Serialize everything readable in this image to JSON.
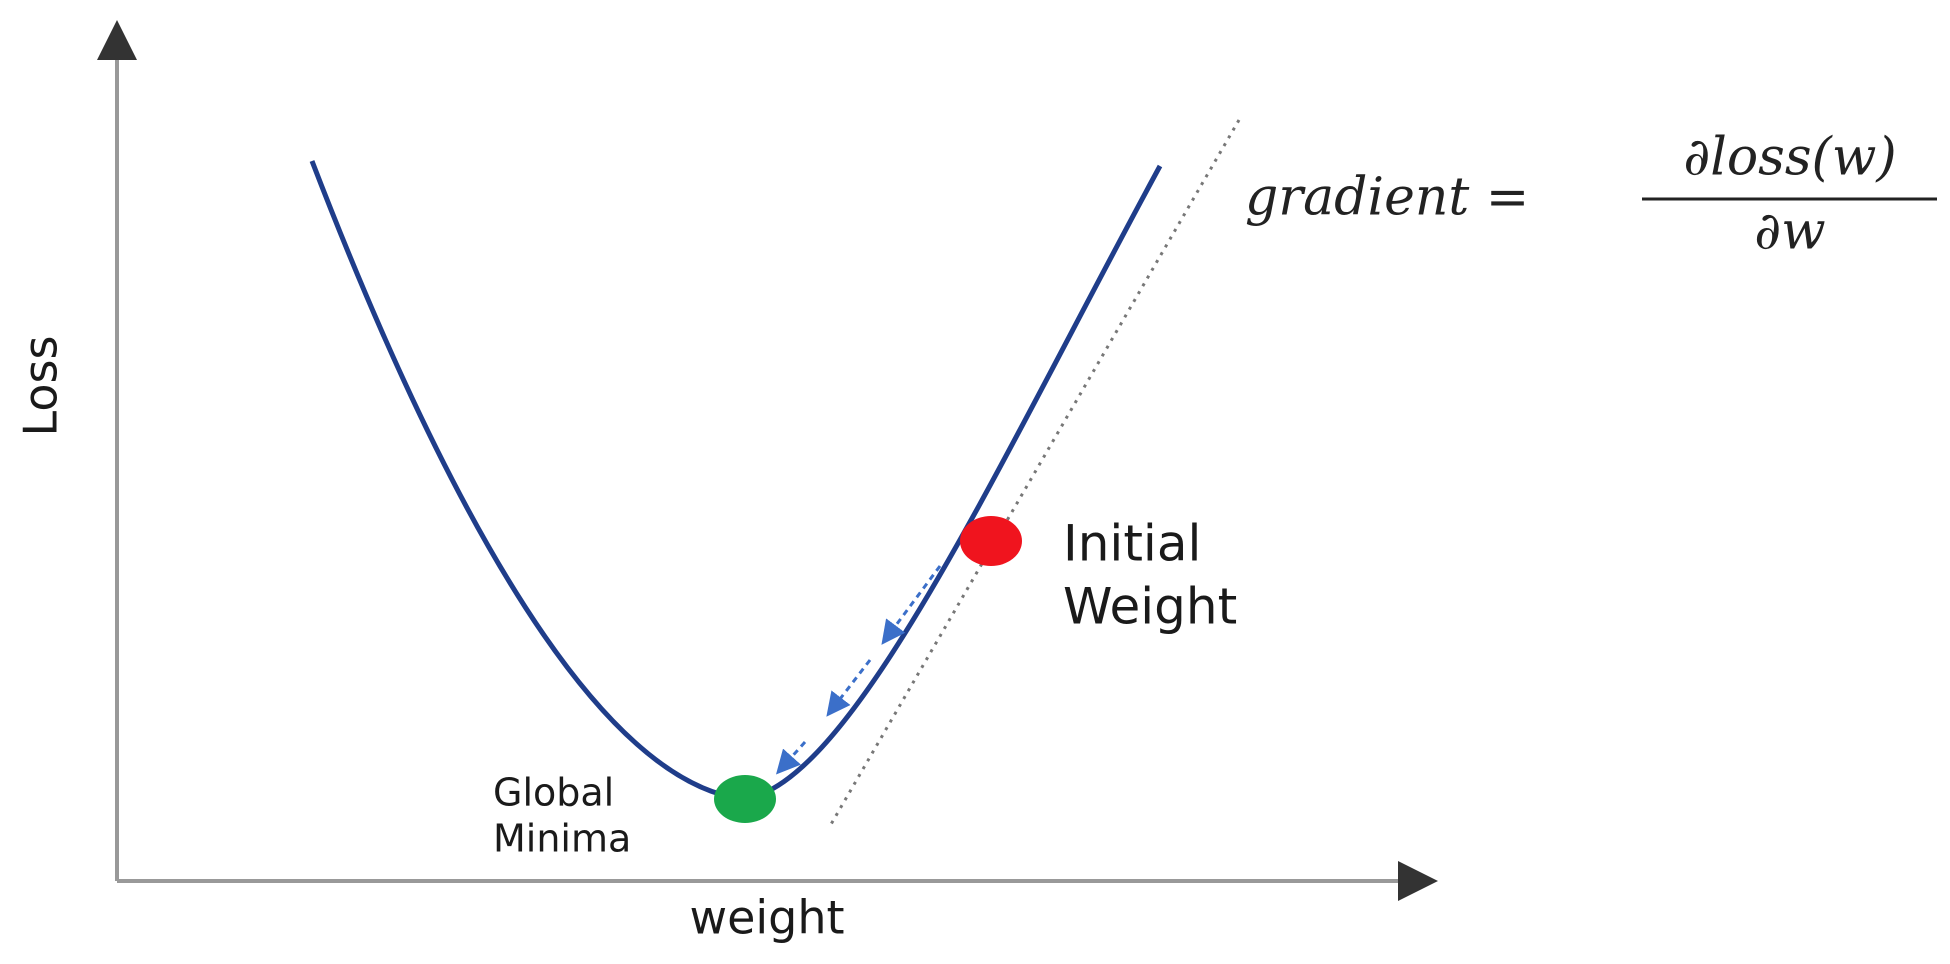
{
  "axes": {
    "y_label": "Loss",
    "x_label": "weight"
  },
  "formula": {
    "lhs": "gradient =",
    "numerator": "∂loss(w)",
    "denominator": "∂w"
  },
  "points": {
    "initial": [
      "Initial",
      "Weight"
    ],
    "minimum": [
      "Global",
      "Minima"
    ]
  }
}
